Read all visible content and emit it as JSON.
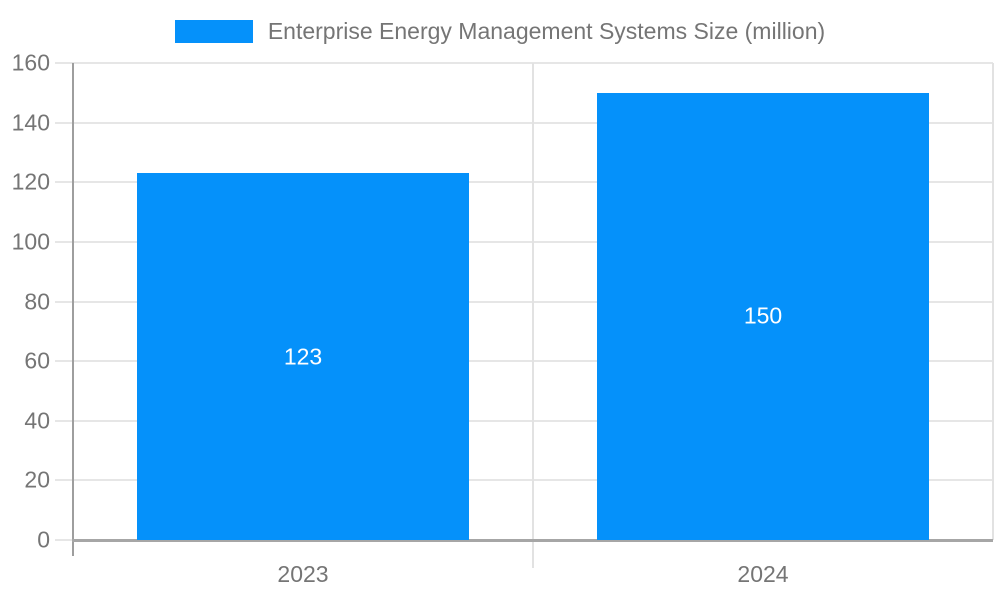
{
  "chart_data": {
    "type": "bar",
    "title": "Enterprise Energy Management Systems Size (million)",
    "categories": [
      "2023",
      "2024"
    ],
    "values": [
      123,
      150
    ],
    "data_labels": [
      "123",
      "150"
    ],
    "xlabel": "",
    "ylabel": "",
    "ylim": [
      0,
      160
    ],
    "ytick_step": 20,
    "ytick_labels": [
      "0",
      "20",
      "40",
      "60",
      "80",
      "100",
      "120",
      "140",
      "160"
    ],
    "grid": true,
    "legend_position": "top",
    "series_name": "Enterprise Energy Management Systems Size (million)"
  },
  "colors": {
    "bar": "#0591fa",
    "bar_label": "#ffffff",
    "axis_text": "#757575",
    "gridline": "#e6e6e6",
    "y_axis_line": "#9e9e9e",
    "baseline": "#a6a6a6",
    "divider": "#e2e2e2",
    "background": "#ffffff"
  }
}
